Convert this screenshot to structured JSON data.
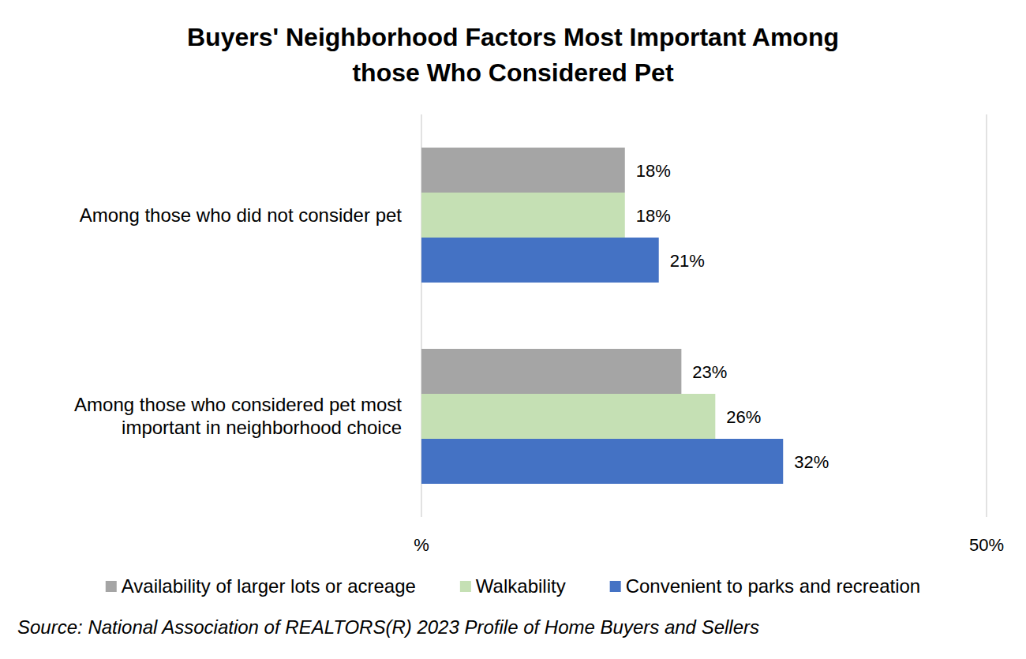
{
  "chart_data": {
    "type": "bar",
    "orientation": "horizontal",
    "title": "Buyers' Neighborhood Factors Most Important Among those Who Considered Pet",
    "categories": [
      "Among those who did not consider pet",
      "Among those who considered pet most important in neighborhood choice"
    ],
    "series": [
      {
        "name": "Availability of larger lots or acreage",
        "color": "#a5a5a5",
        "values": [
          18,
          23
        ],
        "value_labels": [
          "18%",
          "23%"
        ]
      },
      {
        "name": "Walkability",
        "color": "#c5e0b4",
        "values": [
          18,
          26
        ],
        "value_labels": [
          "18%",
          "26%"
        ]
      },
      {
        "name": "Convenient to parks and recreation",
        "color": "#4472c4",
        "values": [
          21,
          32
        ],
        "value_labels": [
          "21%",
          "32%"
        ]
      }
    ],
    "xlim": [
      0,
      50
    ],
    "xticks": [
      {
        "value": 0,
        "label": "%"
      },
      {
        "value": 50,
        "label": "50%"
      }
    ],
    "grid": true,
    "data_labels": true,
    "legend": "bottom",
    "source": "Source: National Association of REALTORS(R) 2023 Profile of Home Buyers and Sellers"
  }
}
